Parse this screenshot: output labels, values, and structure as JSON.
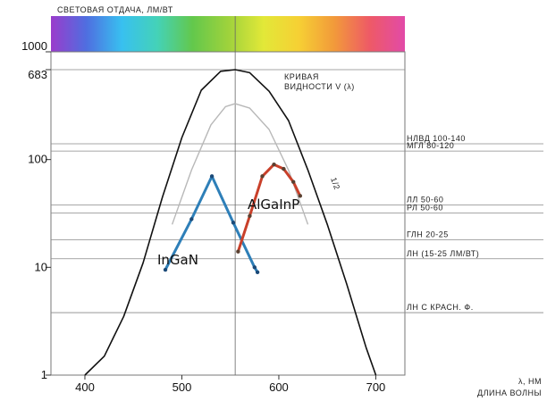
{
  "chart_data": {
    "type": "line",
    "title": "СВЕТОВАЯ ОТДАЧА, ЛМ/ВТ",
    "xlabel": "λ, НМ",
    "xlabel_line2": "ДЛИНА ВОЛНЫ",
    "xlim": [
      365,
      730
    ],
    "ylim": [
      1,
      1000
    ],
    "y_scale": "log",
    "x_ticks": [
      400,
      500,
      600,
      700
    ],
    "y_ticks": [
      {
        "value": 1,
        "label": "1"
      },
      {
        "value": 10,
        "label": "10"
      },
      {
        "value": 100,
        "label": "100"
      },
      {
        "value": 683,
        "label": "683"
      },
      {
        "value": 1000,
        "label": "1000"
      }
    ],
    "grid": false,
    "spectrum_colors": [
      "#9a3ccc",
      "#4f6ee0",
      "#38c0f0",
      "#44d2b8",
      "#63c84c",
      "#9ed23c",
      "#e2e838",
      "#f6d034",
      "#f29a3a",
      "#ee5a66",
      "#e24aa8"
    ],
    "reference_line_value": 683,
    "peak_marker_x": 555,
    "series": [
      {
        "name": "Кривая видности V (λ)",
        "role": "visibility",
        "color": "#111111",
        "x": [
          400,
          420,
          440,
          460,
          480,
          500,
          520,
          540,
          555,
          570,
          590,
          610,
          630,
          650,
          670,
          690,
          700
        ],
        "y": [
          1.0,
          1.5,
          3.5,
          11,
          45,
          160,
          440,
          660,
          683,
          640,
          430,
          230,
          80,
          25,
          7,
          1.8,
          1.0
        ]
      },
      {
        "name": "",
        "role": "inner-curve",
        "color": "#b8b8b8",
        "x": [
          490,
          510,
          530,
          545,
          555,
          570,
          590,
          610,
          630
        ],
        "y": [
          25,
          80,
          210,
          310,
          330,
          300,
          190,
          80,
          25
        ]
      },
      {
        "name": "InGaN",
        "role": "led",
        "color": "#2e7fb8",
        "marker_color": "#1b4a78",
        "x": [
          483,
          510,
          531,
          553,
          575,
          578
        ],
        "y": [
          9.5,
          28,
          70,
          26,
          10,
          9
        ]
      },
      {
        "name": "AlGaInP",
        "role": "led",
        "color": "#c9402a",
        "marker_color": "#5a4030",
        "x": [
          558,
          570,
          583,
          595,
          605,
          615,
          622
        ],
        "y": [
          14,
          30,
          70,
          90,
          82,
          62,
          46
        ]
      }
    ],
    "annotations": {
      "curve_label_line1": "КРИВАЯ",
      "curve_label_line2": "ВИДНОСТИ V (λ)",
      "ratio_label": "1/2"
    },
    "light_sources": [
      {
        "label": "НЛВД 100-140",
        "value": 140
      },
      {
        "label": "МГЛ 80-120",
        "value": 120
      },
      {
        "label": "ЛЛ 50-60",
        "value": 38
      },
      {
        "label": "РЛ 50-60",
        "value": 32
      },
      {
        "label": "ГЛН 20-25",
        "value": 18
      },
      {
        "label": "ЛН (15-25 ЛМ/ВТ)",
        "value": 12
      },
      {
        "label": "ЛН С КРАСН. Ф.",
        "value": 3.8
      }
    ]
  }
}
